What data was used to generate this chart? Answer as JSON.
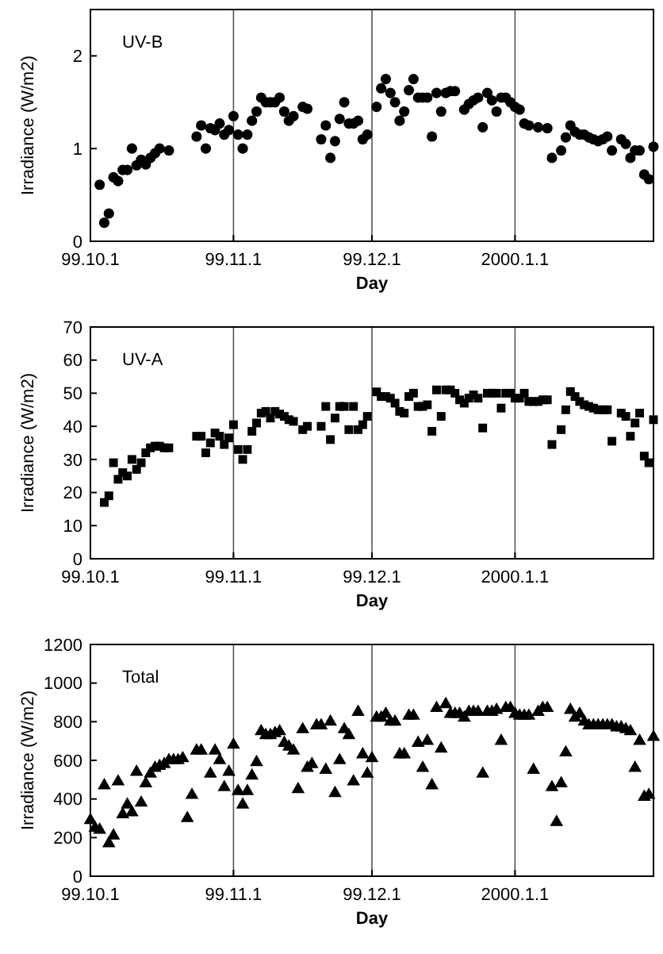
{
  "chart_data": [
    {
      "type": "scatter",
      "xlabel": "Day",
      "ylabel": "Irradiance (W/m2)",
      "marker": "circle",
      "grid": "x",
      "xlim": [
        "1999-10-01",
        "2000-01-31"
      ],
      "xticks": [
        {
          "value": "1999-10-01",
          "label": "99.10.1"
        },
        {
          "value": "1999-11-01",
          "label": "99.11.1"
        },
        {
          "value": "1999-12-01",
          "label": "99.12.1"
        },
        {
          "value": "2000-01-01",
          "label": "2000.1.1"
        }
      ],
      "ylim": [
        0,
        2.5
      ],
      "yticks": [
        0,
        1,
        2
      ],
      "x": [
        "1999-10-03",
        "1999-10-04",
        "1999-10-05",
        "1999-10-06",
        "1999-10-07",
        "1999-10-08",
        "1999-10-09",
        "1999-10-10",
        "1999-10-11",
        "1999-10-12",
        "1999-10-13",
        "1999-10-14",
        "1999-10-15",
        "1999-10-16",
        "1999-10-18",
        "1999-10-24",
        "1999-10-25",
        "1999-10-26",
        "1999-10-27",
        "1999-10-28",
        "1999-10-29",
        "1999-10-30",
        "1999-10-31",
        "1999-11-01",
        "1999-11-02",
        "1999-11-03",
        "1999-11-04",
        "1999-11-05",
        "1999-11-06",
        "1999-11-07",
        "1999-11-08",
        "1999-11-09",
        "1999-11-10",
        "1999-11-11",
        "1999-11-12",
        "1999-11-13",
        "1999-11-14",
        "1999-11-16",
        "1999-11-17",
        "1999-11-20",
        "1999-11-21",
        "1999-11-22",
        "1999-11-23",
        "1999-11-24",
        "1999-11-25",
        "1999-11-26",
        "1999-11-27",
        "1999-11-28",
        "1999-11-29",
        "1999-11-30",
        "1999-12-02",
        "1999-12-03",
        "1999-12-04",
        "1999-12-05",
        "1999-12-06",
        "1999-12-07",
        "1999-12-08",
        "1999-12-09",
        "1999-12-10",
        "1999-12-11",
        "1999-12-12",
        "1999-12-13",
        "1999-12-14",
        "1999-12-15",
        "1999-12-16",
        "1999-12-17",
        "1999-12-18",
        "1999-12-19",
        "1999-12-21",
        "1999-12-22",
        "1999-12-23",
        "1999-12-24",
        "1999-12-25",
        "1999-12-26",
        "1999-12-27",
        "1999-12-28",
        "1999-12-29",
        "1999-12-30",
        "1999-12-31",
        "2000-01-01",
        "2000-01-02",
        "2000-01-03",
        "2000-01-04",
        "2000-01-06",
        "2000-01-08",
        "2000-01-09",
        "2000-01-11",
        "2000-01-12",
        "2000-01-13",
        "2000-01-14",
        "2000-01-15",
        "2000-01-16",
        "2000-01-17",
        "2000-01-18",
        "2000-01-19",
        "2000-01-20",
        "2000-01-21",
        "2000-01-22",
        "2000-01-24",
        "2000-01-25",
        "2000-01-26",
        "2000-01-27",
        "2000-01-28",
        "2000-01-29",
        "2000-01-30",
        "2000-01-31"
      ],
      "series": [
        {
          "name": "UV-B",
          "color": "#000000",
          "values": [
            0.61,
            0.2,
            0.3,
            0.69,
            0.65,
            0.77,
            0.77,
            1.0,
            0.82,
            0.88,
            0.83,
            0.9,
            0.95,
            1.0,
            0.98,
            1.13,
            1.25,
            1.0,
            1.22,
            1.2,
            1.27,
            1.15,
            1.2,
            1.35,
            1.15,
            1.0,
            1.15,
            1.3,
            1.4,
            1.55,
            1.5,
            1.5,
            1.5,
            1.55,
            1.4,
            1.3,
            1.35,
            1.45,
            1.43,
            1.1,
            1.25,
            0.9,
            1.08,
            1.32,
            1.5,
            1.27,
            1.27,
            1.3,
            1.1,
            1.15,
            1.45,
            1.65,
            1.75,
            1.6,
            1.5,
            1.3,
            1.4,
            1.63,
            1.75,
            1.55,
            1.55,
            1.55,
            1.13,
            1.6,
            1.4,
            1.6,
            1.62,
            1.62,
            1.42,
            1.48,
            1.52,
            1.55,
            1.23,
            1.6,
            1.52,
            1.4,
            1.55,
            1.55,
            1.5,
            1.45,
            1.42,
            1.27,
            1.25,
            1.23,
            1.22,
            0.9,
            0.98,
            1.12,
            1.25,
            1.18,
            1.15,
            1.15,
            1.12,
            1.1,
            1.08,
            1.1,
            1.13,
            0.98,
            1.1,
            1.05,
            0.9,
            0.98,
            0.98,
            0.72,
            0.67,
            1.02
          ]
        }
      ]
    },
    {
      "type": "scatter",
      "xlabel": "Day",
      "ylabel": "Irradiance (W/m2)",
      "marker": "square",
      "grid": "x",
      "xlim": [
        "1999-10-01",
        "2000-01-31"
      ],
      "xticks": [
        {
          "value": "1999-10-01",
          "label": "99.10.1"
        },
        {
          "value": "1999-11-01",
          "label": "99.11.1"
        },
        {
          "value": "1999-12-01",
          "label": "99.12.1"
        },
        {
          "value": "2000-01-01",
          "label": "2000.1.1"
        }
      ],
      "ylim": [
        0,
        70
      ],
      "yticks": [
        0,
        10,
        20,
        30,
        40,
        50,
        60,
        70
      ],
      "x": [
        "1999-10-04",
        "1999-10-05",
        "1999-10-06",
        "1999-10-07",
        "1999-10-08",
        "1999-10-09",
        "1999-10-10",
        "1999-10-11",
        "1999-10-12",
        "1999-10-13",
        "1999-10-14",
        "1999-10-15",
        "1999-10-16",
        "1999-10-17",
        "1999-10-18",
        "1999-10-24",
        "1999-10-25",
        "1999-10-26",
        "1999-10-27",
        "1999-10-28",
        "1999-10-29",
        "1999-10-30",
        "1999-10-31",
        "1999-11-01",
        "1999-11-02",
        "1999-11-03",
        "1999-11-04",
        "1999-11-05",
        "1999-11-06",
        "1999-11-07",
        "1999-11-08",
        "1999-11-09",
        "1999-11-10",
        "1999-11-11",
        "1999-11-12",
        "1999-11-13",
        "1999-11-14",
        "1999-11-16",
        "1999-11-17",
        "1999-11-20",
        "1999-11-21",
        "1999-11-22",
        "1999-11-23",
        "1999-11-24",
        "1999-11-25",
        "1999-11-26",
        "1999-11-27",
        "1999-11-28",
        "1999-11-29",
        "1999-11-30",
        "1999-12-02",
        "1999-12-03",
        "1999-12-04",
        "1999-12-05",
        "1999-12-06",
        "1999-12-07",
        "1999-12-08",
        "1999-12-09",
        "1999-12-10",
        "1999-12-11",
        "1999-12-12",
        "1999-12-13",
        "1999-12-14",
        "1999-12-15",
        "1999-12-16",
        "1999-12-17",
        "1999-12-18",
        "1999-12-19",
        "1999-12-20",
        "1999-12-21",
        "1999-12-22",
        "1999-12-23",
        "1999-12-24",
        "1999-12-25",
        "1999-12-26",
        "1999-12-27",
        "1999-12-28",
        "1999-12-29",
        "1999-12-30",
        "1999-12-31",
        "2000-01-01",
        "2000-01-02",
        "2000-01-03",
        "2000-01-04",
        "2000-01-05",
        "2000-01-06",
        "2000-01-07",
        "2000-01-08",
        "2000-01-09",
        "2000-01-11",
        "2000-01-12",
        "2000-01-13",
        "2000-01-14",
        "2000-01-15",
        "2000-01-16",
        "2000-01-17",
        "2000-01-18",
        "2000-01-19",
        "2000-01-20",
        "2000-01-21",
        "2000-01-22",
        "2000-01-24",
        "2000-01-25",
        "2000-01-26",
        "2000-01-27",
        "2000-01-28",
        "2000-01-29",
        "2000-01-30",
        "2000-01-31"
      ],
      "series": [
        {
          "name": "UV-A",
          "color": "#000000",
          "values": [
            17,
            19,
            29,
            24,
            26,
            25,
            30,
            27,
            29,
            32,
            33.5,
            34,
            34,
            33.5,
            33.5,
            37,
            37,
            32,
            35,
            38,
            37,
            34.5,
            36.5,
            40.5,
            33,
            30,
            33,
            38.5,
            41,
            44,
            44.5,
            42.5,
            44.5,
            43.7,
            43,
            42,
            41.5,
            39,
            40,
            40,
            46,
            36,
            42.5,
            46,
            46,
            39,
            46,
            39,
            40.5,
            43,
            50.4,
            49,
            49,
            48.5,
            47,
            44.5,
            44,
            49,
            50,
            46,
            46,
            46.5,
            38.5,
            51,
            43,
            51,
            51,
            50,
            48,
            47,
            48.5,
            49.5,
            48.5,
            39.5,
            50,
            50,
            50,
            45.5,
            50,
            50,
            48.5,
            48.5,
            50,
            47.5,
            47.5,
            47.5,
            48,
            48,
            34.5,
            39,
            45,
            50.5,
            49,
            47.5,
            46.5,
            46,
            45.5,
            45,
            45,
            45,
            35.5,
            44,
            43,
            37,
            41,
            44,
            31,
            29,
            42
          ]
        }
      ]
    },
    {
      "type": "scatter",
      "xlabel": "Day",
      "ylabel": "Irradiance (W/m2)",
      "marker": "triangle",
      "grid": "x",
      "xlim": [
        "1999-10-01",
        "2000-01-31"
      ],
      "xticks": [
        {
          "value": "1999-10-01",
          "label": "99.10.1"
        },
        {
          "value": "1999-11-01",
          "label": "99.11.1"
        },
        {
          "value": "1999-12-01",
          "label": "99.12.1"
        },
        {
          "value": "2000-01-01",
          "label": "2000.1.1"
        }
      ],
      "ylim": [
        0,
        1200
      ],
      "yticks": [
        0,
        200,
        400,
        600,
        800,
        1000,
        1200
      ],
      "x": [
        "1999-10-01",
        "1999-10-02",
        "1999-10-03",
        "1999-10-04",
        "1999-10-05",
        "1999-10-06",
        "1999-10-07",
        "1999-10-08",
        "1999-10-09",
        "1999-10-10",
        "1999-10-11",
        "1999-10-12",
        "1999-10-13",
        "1999-10-14",
        "1999-10-15",
        "1999-10-16",
        "1999-10-17",
        "1999-10-18",
        "1999-10-19",
        "1999-10-20",
        "1999-10-21",
        "1999-10-22",
        "1999-10-23",
        "1999-10-24",
        "1999-10-25",
        "1999-10-27",
        "1999-10-28",
        "1999-10-29",
        "1999-10-30",
        "1999-10-31",
        "1999-11-01",
        "1999-11-02",
        "1999-11-03",
        "1999-11-04",
        "1999-11-05",
        "1999-11-06",
        "1999-11-07",
        "1999-11-08",
        "1999-11-09",
        "1999-11-10",
        "1999-11-11",
        "1999-11-12",
        "1999-11-13",
        "1999-11-14",
        "1999-11-15",
        "1999-11-16",
        "1999-11-17",
        "1999-11-18",
        "1999-11-19",
        "1999-11-20",
        "1999-11-21",
        "1999-11-22",
        "1999-11-23",
        "1999-11-24",
        "1999-11-25",
        "1999-11-26",
        "1999-11-27",
        "1999-11-28",
        "1999-11-29",
        "1999-11-30",
        "1999-12-01",
        "1999-12-02",
        "1999-12-03",
        "1999-12-04",
        "1999-12-05",
        "1999-12-06",
        "1999-12-07",
        "1999-12-08",
        "1999-12-09",
        "1999-12-10",
        "1999-12-11",
        "1999-12-12",
        "1999-12-13",
        "1999-12-14",
        "1999-12-15",
        "1999-12-16",
        "1999-12-17",
        "1999-12-18",
        "1999-12-19",
        "1999-12-20",
        "1999-12-21",
        "1999-12-22",
        "1999-12-23",
        "1999-12-24",
        "1999-12-25",
        "1999-12-26",
        "1999-12-27",
        "1999-12-28",
        "1999-12-29",
        "1999-12-30",
        "1999-12-31",
        "2000-01-01",
        "2000-01-02",
        "2000-01-03",
        "2000-01-04",
        "2000-01-05",
        "2000-01-06",
        "2000-01-07",
        "2000-01-08",
        "2000-01-09",
        "2000-01-10",
        "2000-01-11",
        "2000-01-12",
        "2000-01-13",
        "2000-01-14",
        "2000-01-15",
        "2000-01-16",
        "2000-01-17",
        "2000-01-18",
        "2000-01-19",
        "2000-01-20",
        "2000-01-21",
        "2000-01-22",
        "2000-01-23",
        "2000-01-24",
        "2000-01-25",
        "2000-01-26",
        "2000-01-27",
        "2000-01-28",
        "2000-01-29",
        "2000-01-30",
        "2000-01-31"
      ],
      "series": [
        {
          "name": "Total",
          "color": "#000000",
          "values": [
            290,
            250,
            240,
            470,
            170,
            210,
            490,
            320,
            370,
            330,
            540,
            380,
            480,
            530,
            560,
            570,
            580,
            600,
            600,
            600,
            610,
            300,
            420,
            650,
            650,
            530,
            650,
            600,
            460,
            540,
            680,
            440,
            370,
            440,
            520,
            590,
            750,
            730,
            730,
            740,
            750,
            690,
            670,
            650,
            450,
            760,
            560,
            580,
            780,
            780,
            550,
            800,
            430,
            600,
            760,
            730,
            490,
            850,
            630,
            530,
            610,
            820,
            820,
            840,
            800,
            800,
            630,
            630,
            830,
            830,
            690,
            560,
            700,
            470,
            870,
            660,
            890,
            840,
            840,
            840,
            820,
            850,
            850,
            850,
            530,
            850,
            850,
            860,
            700,
            870,
            870,
            840,
            830,
            830,
            830,
            550,
            850,
            870,
            870,
            460,
            280,
            480,
            640,
            860,
            820,
            840,
            800,
            780,
            780,
            780,
            780,
            780,
            780,
            770,
            770,
            760,
            750,
            560,
            700,
            410,
            420,
            720
          ]
        }
      ]
    }
  ]
}
